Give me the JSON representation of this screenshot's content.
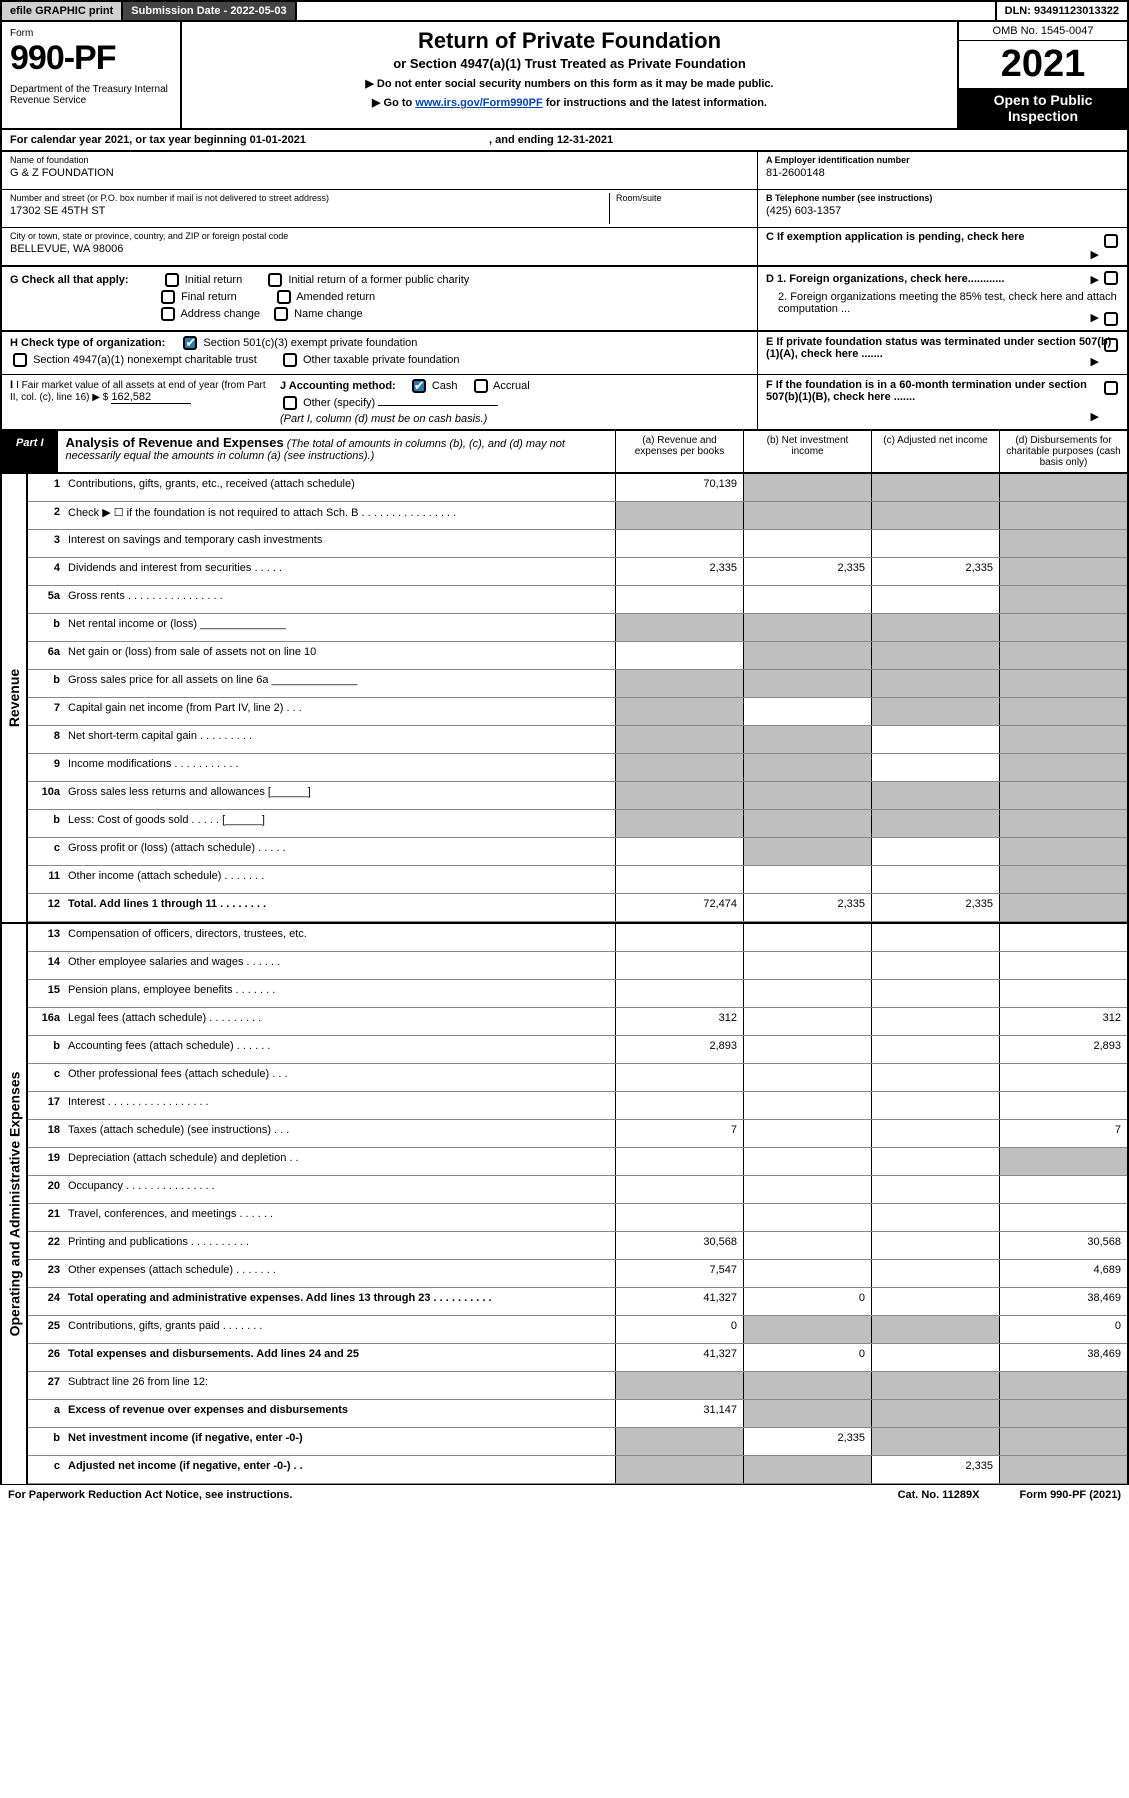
{
  "colors": {
    "black": "#000000",
    "white": "#ffffff",
    "link": "#0645ad",
    "shade": "#bfbfbf",
    "checkbox_fill": "#2a7ab0",
    "topbar_btn": "#d0d0d0",
    "topbar_dark": "#444444"
  },
  "topbar": {
    "efile": "efile GRAPHIC print",
    "sub_date_label": "Submission Date - 2022-05-03",
    "dln": "DLN: 93491123013322"
  },
  "header": {
    "form_label": "Form",
    "form_number": "990-PF",
    "dept": "Department of the Treasury\nInternal Revenue Service",
    "title": "Return of Private Foundation",
    "subtitle": "or Section 4947(a)(1) Trust Treated as Private Foundation",
    "instr1": "▶ Do not enter social security numbers on this form as it may be made public.",
    "instr2_pre": "▶ Go to ",
    "instr2_link": "www.irs.gov/Form990PF",
    "instr2_post": " for instructions and the latest information.",
    "omb": "OMB No. 1545-0047",
    "year": "2021",
    "open": "Open to Public Inspection"
  },
  "calyear": {
    "text_pre": "For calendar year 2021, or tax year beginning ",
    "begin": "01-01-2021",
    "mid": " , and ending ",
    "end": "12-31-2021"
  },
  "entity": {
    "name_label": "Name of foundation",
    "name": "G & Z FOUNDATION",
    "addr_label": "Number and street (or P.O. box number if mail is not delivered to street address)",
    "addr": "17302 SE 45TH ST",
    "room_label": "Room/suite",
    "room": "",
    "city_label": "City or town, state or province, country, and ZIP or foreign postal code",
    "city": "BELLEVUE, WA  98006",
    "a_label": "A Employer identification number",
    "a_val": "81-2600148",
    "b_label": "B Telephone number (see instructions)",
    "b_val": "(425) 603-1357",
    "c_label": "C If exemption application is pending, check here"
  },
  "g": {
    "label": "G Check all that apply:",
    "items": [
      "Initial return",
      "Initial return of a former public charity",
      "Final return",
      "Amended return",
      "Address change",
      "Name change"
    ]
  },
  "d": {
    "d1": "D 1. Foreign organizations, check here............",
    "d2": "2. Foreign organizations meeting the 85% test, check here and attach computation ..."
  },
  "h": {
    "label": "H Check type of organization:",
    "opt1": "Section 501(c)(3) exempt private foundation",
    "opt2": "Section 4947(a)(1) nonexempt charitable trust",
    "opt3": "Other taxable private foundation"
  },
  "e": {
    "text": "E  If private foundation status was terminated under section 507(b)(1)(A), check here ......."
  },
  "i": {
    "label": "I Fair market value of all assets at end of year (from Part II, col. (c), line 16) ▶ $",
    "val": "162,582"
  },
  "j": {
    "label": "J Accounting method:",
    "cash": "Cash",
    "accrual": "Accrual",
    "other": "Other (specify)",
    "note": "(Part I, column (d) must be on cash basis.)"
  },
  "f": {
    "text": "F  If the foundation is in a 60-month termination under section 507(b)(1)(B), check here ......."
  },
  "part1": {
    "tab": "Part I",
    "title": "Analysis of Revenue and Expenses",
    "title_note": "(The total of amounts in columns (b), (c), and (d) may not necessarily equal the amounts in column (a) (see instructions).)",
    "col_a": "(a)  Revenue and expenses per books",
    "col_b": "(b)  Net investment income",
    "col_c": "(c)  Adjusted net income",
    "col_d": "(d)  Disbursements for charitable purposes (cash basis only)"
  },
  "side": {
    "revenue": "Revenue",
    "expenses": "Operating and Administrative Expenses"
  },
  "rows": [
    {
      "n": "1",
      "d": "shade",
      "a": "70,139",
      "b": "shade",
      "c": "shade"
    },
    {
      "n": "2",
      "d": "shade",
      "a": "shade",
      "b": "shade",
      "c": "shade"
    },
    {
      "n": "3",
      "d": "shade",
      "a": "",
      "b": "",
      "c": ""
    },
    {
      "n": "4",
      "d": "shade",
      "a": "2,335",
      "b": "2,335",
      "c": "2,335"
    },
    {
      "n": "5a",
      "d": "shade",
      "a": "",
      "b": "",
      "c": ""
    },
    {
      "n": "b",
      "d": "shade",
      "a": "shade",
      "b": "shade",
      "c": "shade"
    },
    {
      "n": "6a",
      "d": "shade",
      "a": "",
      "b": "shade",
      "c": "shade"
    },
    {
      "n": "b",
      "d": "shade",
      "a": "shade",
      "b": "shade",
      "c": "shade"
    },
    {
      "n": "7",
      "d": "shade",
      "a": "shade",
      "b": "",
      "c": "shade"
    },
    {
      "n": "8",
      "d": "shade",
      "a": "shade",
      "b": "shade",
      "c": ""
    },
    {
      "n": "9",
      "d": "shade",
      "a": "shade",
      "b": "shade",
      "c": ""
    },
    {
      "n": "10a",
      "d": "shade",
      "a": "shade",
      "b": "shade",
      "c": "shade"
    },
    {
      "n": "b",
      "d": "shade",
      "a": "shade",
      "b": "shade",
      "c": "shade"
    },
    {
      "n": "c",
      "d": "shade",
      "a": "",
      "b": "shade",
      "c": ""
    },
    {
      "n": "11",
      "d": "shade",
      "a": "",
      "b": "",
      "c": ""
    },
    {
      "n": "12",
      "d": "shade",
      "bold": true,
      "a": "72,474",
      "b": "2,335",
      "c": "2,335"
    },
    {
      "n": "13",
      "d": "",
      "a": "",
      "b": "",
      "c": ""
    },
    {
      "n": "14",
      "d": "",
      "a": "",
      "b": "",
      "c": ""
    },
    {
      "n": "15",
      "d": "",
      "a": "",
      "b": "",
      "c": ""
    },
    {
      "n": "16a",
      "d": "312",
      "a": "312",
      "b": "",
      "c": ""
    },
    {
      "n": "b",
      "d": "2,893",
      "a": "2,893",
      "b": "",
      "c": ""
    },
    {
      "n": "c",
      "d": "",
      "a": "",
      "b": "",
      "c": ""
    },
    {
      "n": "17",
      "d": "",
      "a": "",
      "b": "",
      "c": ""
    },
    {
      "n": "18",
      "d": "7",
      "a": "7",
      "b": "",
      "c": ""
    },
    {
      "n": "19",
      "d": "shade",
      "a": "",
      "b": "",
      "c": ""
    },
    {
      "n": "20",
      "d": "",
      "a": "",
      "b": "",
      "c": ""
    },
    {
      "n": "21",
      "d": "",
      "a": "",
      "b": "",
      "c": ""
    },
    {
      "n": "22",
      "d": "30,568",
      "a": "30,568",
      "b": "",
      "c": ""
    },
    {
      "n": "23",
      "d": "4,689",
      "icon": true,
      "a": "7,547",
      "b": "",
      "c": ""
    },
    {
      "n": "24",
      "d": "38,469",
      "bold": true,
      "a": "41,327",
      "b": "0",
      "c": ""
    },
    {
      "n": "25",
      "d": "0",
      "a": "0",
      "b": "shade",
      "c": "shade"
    },
    {
      "n": "26",
      "d": "38,469",
      "bold": true,
      "a": "41,327",
      "b": "0",
      "c": ""
    },
    {
      "n": "27",
      "d": "shade",
      "a": "shade",
      "b": "shade",
      "c": "shade"
    },
    {
      "n": "a",
      "d": "shade",
      "bold": true,
      "a": "31,147",
      "b": "shade",
      "c": "shade"
    },
    {
      "n": "b",
      "d": "shade",
      "bold": true,
      "a": "shade",
      "b": "2,335",
      "c": "shade"
    },
    {
      "n": "c",
      "d": "shade",
      "bold": true,
      "a": "shade",
      "b": "shade",
      "c": "2,335"
    }
  ],
  "footer": {
    "left": "For Paperwork Reduction Act Notice, see instructions.",
    "mid": "Cat. No. 11289X",
    "right": "Form 990-PF (2021)"
  }
}
